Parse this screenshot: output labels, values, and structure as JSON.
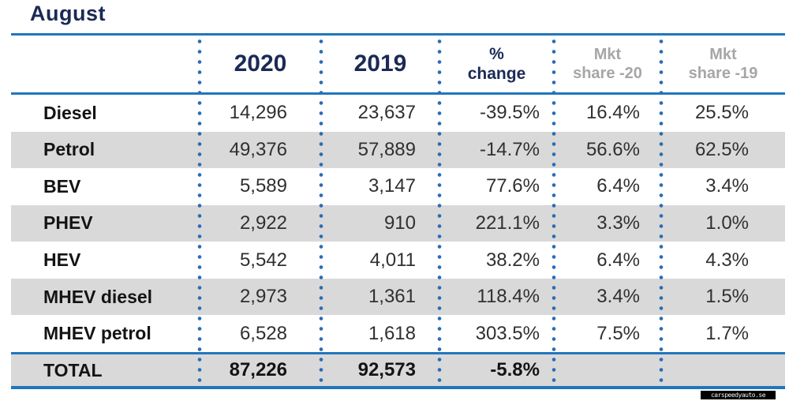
{
  "title": "August",
  "watermark_text": "carspeedyauto.se",
  "colors": {
    "rule_blue": "#2176bc",
    "dot_blue": "#2a6db8",
    "header_navy": "#1b2a55",
    "header_gray": "#a6a6a6",
    "band_gray": "#d9d9d9",
    "body_text": "#303030"
  },
  "table": {
    "columns": [
      {
        "label": ""
      },
      {
        "label": "2020"
      },
      {
        "label": "2019"
      },
      {
        "label": "% change",
        "line1": "%",
        "line2": "change"
      },
      {
        "label": "Mkt share -20",
        "line1": "Mkt",
        "line2": "share -20"
      },
      {
        "label": "Mkt share -19",
        "line1": "Mkt",
        "line2": "share -19"
      }
    ],
    "rows": [
      {
        "label": "Diesel",
        "y2020": "14,296",
        "y2019": "23,637",
        "change": "-39.5%",
        "mkt20": "16.4%",
        "mkt19": "25.5%"
      },
      {
        "label": "Petrol",
        "y2020": "49,376",
        "y2019": "57,889",
        "change": "-14.7%",
        "mkt20": "56.6%",
        "mkt19": "62.5%"
      },
      {
        "label": "BEV",
        "y2020": "5,589",
        "y2019": "3,147",
        "change": "77.6%",
        "mkt20": "6.4%",
        "mkt19": "3.4%"
      },
      {
        "label": "PHEV",
        "y2020": "2,922",
        "y2019": "910",
        "change": "221.1%",
        "mkt20": "3.3%",
        "mkt19": "1.0%"
      },
      {
        "label": "HEV",
        "y2020": "5,542",
        "y2019": "4,011",
        "change": "38.2%",
        "mkt20": "6.4%",
        "mkt19": "4.3%"
      },
      {
        "label": "MHEV diesel",
        "y2020": "2,973",
        "y2019": "1,361",
        "change": "118.4%",
        "mkt20": "3.4%",
        "mkt19": "1.5%"
      },
      {
        "label": "MHEV petrol",
        "y2020": "6,528",
        "y2019": "1,618",
        "change": "303.5%",
        "mkt20": "7.5%",
        "mkt19": "1.7%"
      }
    ],
    "total": {
      "label": "TOTAL",
      "y2020": "87,226",
      "y2019": "92,573",
      "change": "-5.8%",
      "mkt20": "",
      "mkt19": ""
    }
  },
  "chart_data": {
    "type": "table",
    "title": "August",
    "categories": [
      "Diesel",
      "Petrol",
      "BEV",
      "PHEV",
      "HEV",
      "MHEV diesel",
      "MHEV petrol",
      "TOTAL"
    ],
    "series": [
      {
        "name": "2020",
        "values": [
          14296,
          49376,
          5589,
          2922,
          5542,
          2973,
          6528,
          87226
        ]
      },
      {
        "name": "2019",
        "values": [
          23637,
          57889,
          3147,
          910,
          4011,
          1361,
          1618,
          92573
        ]
      },
      {
        "name": "% change",
        "values": [
          -39.5,
          -14.7,
          77.6,
          221.1,
          38.2,
          118.4,
          303.5,
          -5.8
        ]
      },
      {
        "name": "Mkt share -20",
        "values": [
          16.4,
          56.6,
          6.4,
          3.3,
          6.4,
          3.4,
          7.5,
          null
        ]
      },
      {
        "name": "Mkt share -19",
        "values": [
          25.5,
          62.5,
          3.4,
          1.0,
          4.3,
          1.5,
          1.7,
          null
        ]
      }
    ],
    "layout": {
      "banded_rows": [
        1,
        3,
        5,
        7
      ],
      "numeric_alignment": "right",
      "grid": "dotted-vertical-separators"
    }
  }
}
